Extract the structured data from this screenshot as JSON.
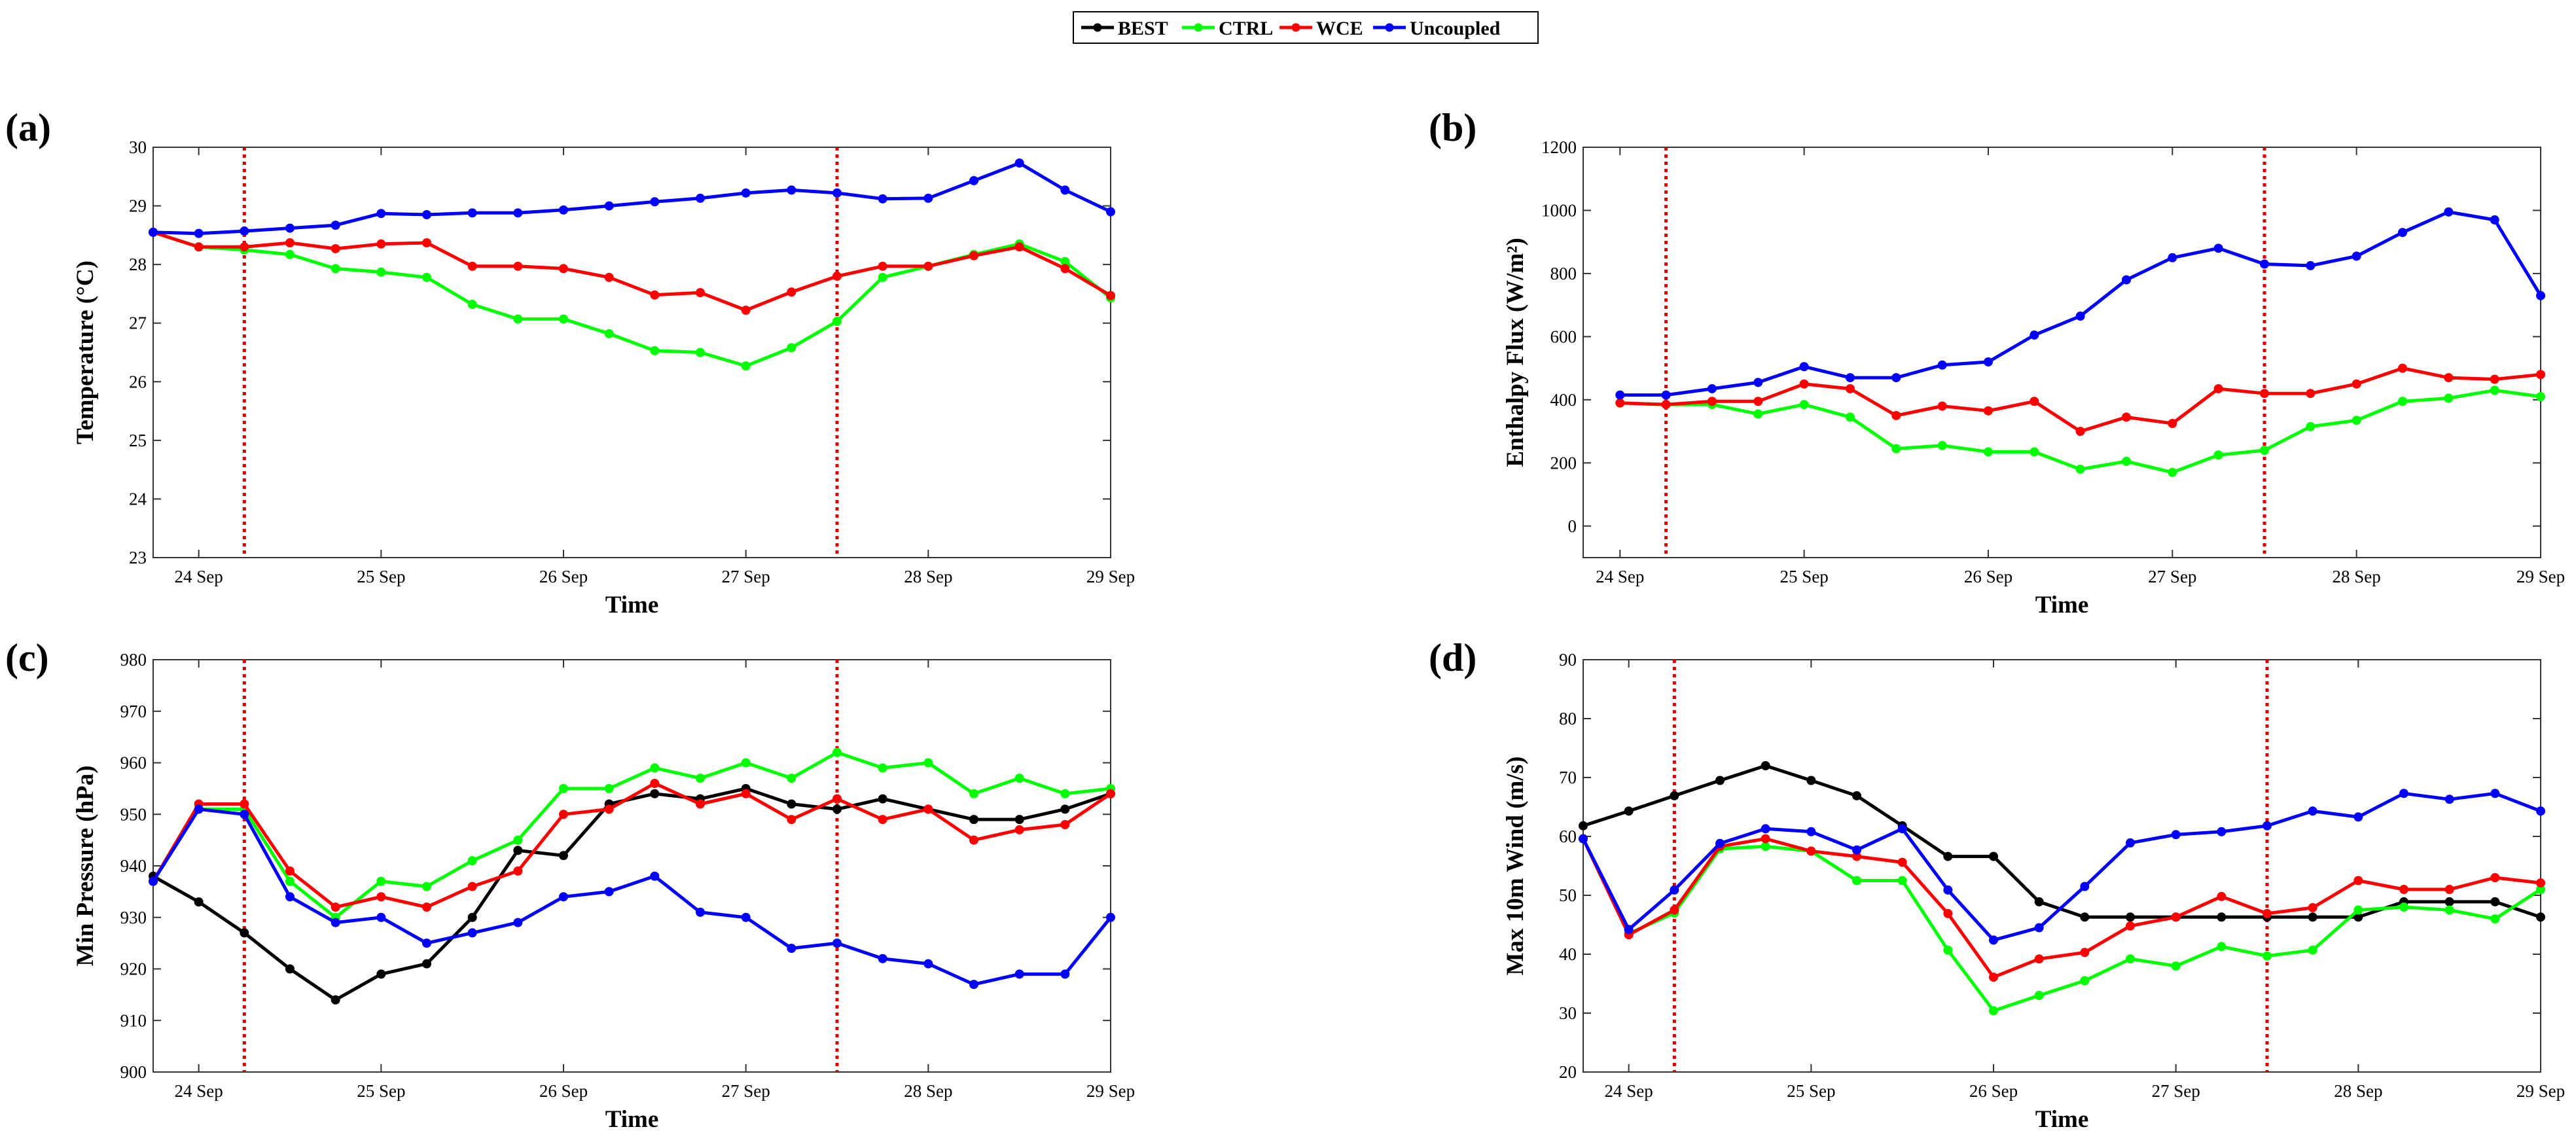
{
  "legend": {
    "entries": [
      "BEST",
      "CTRL",
      "WCE",
      "Uncoupled"
    ],
    "placement": "top-center"
  },
  "colors": {
    "BEST": "#000000",
    "CTRL": "#00ff00",
    "WCE": "#ff0000",
    "Uncoupled": "#0000ff",
    "vline": "#dd0000"
  },
  "chart_data": [
    {
      "panel_label": "(a)",
      "type": "line",
      "title": "",
      "xlabel": "Time",
      "ylabel": "Temperature (°C)",
      "xlim": [
        -0.25,
        5.0
      ],
      "ylim": [
        23,
        30
      ],
      "yticks": [
        "23",
        "24",
        "25",
        "26",
        "27",
        "28",
        "29",
        "30"
      ],
      "xticks": [
        "24 Sep",
        "25 Sep",
        "26 Sep",
        "27 Sep",
        "28 Sep",
        "29 Sep"
      ],
      "vlines": [
        0.25,
        3.5
      ],
      "x": [
        -0.25,
        0,
        0.25,
        0.5,
        0.75,
        1,
        1.25,
        1.5,
        1.75,
        2,
        2.25,
        2.5,
        2.75,
        3,
        3.25,
        3.5,
        3.75,
        4,
        4.25,
        4.5,
        4.75,
        5
      ],
      "series": [
        {
          "name": "CTRL",
          "values": [
            28.55,
            28.3,
            28.25,
            28.17,
            27.93,
            27.87,
            27.78,
            27.32,
            27.07,
            27.07,
            26.82,
            26.53,
            26.5,
            26.27,
            26.58,
            27.03,
            27.78,
            27.97,
            28.17,
            28.35,
            28.05,
            27.43
          ]
        },
        {
          "name": "WCE",
          "values": [
            28.55,
            28.3,
            28.3,
            28.37,
            28.27,
            28.35,
            28.37,
            27.97,
            27.97,
            27.93,
            27.78,
            27.48,
            27.52,
            27.22,
            27.53,
            27.8,
            27.97,
            27.97,
            28.15,
            28.3,
            27.93,
            27.47
          ]
        },
        {
          "name": "Uncoupled",
          "values": [
            28.55,
            28.53,
            28.57,
            28.62,
            28.67,
            28.87,
            28.85,
            28.88,
            28.88,
            28.93,
            29.0,
            29.07,
            29.13,
            29.22,
            29.27,
            29.22,
            29.12,
            29.13,
            29.43,
            29.73,
            29.27,
            28.9
          ]
        }
      ]
    },
    {
      "panel_label": "(b)",
      "type": "line",
      "title": "",
      "xlabel": "Time",
      "ylabel": "Enthalpy Flux (W/m²)",
      "xlim": [
        -0.2,
        5.0
      ],
      "ylim": [
        -100,
        1200
      ],
      "yticks": [
        "0",
        "200",
        "400",
        "600",
        "800",
        "1000",
        "1200"
      ],
      "xticks": [
        "24 Sep",
        "25 Sep",
        "26 Sep",
        "27 Sep",
        "28 Sep",
        "29 Sep"
      ],
      "vlines": [
        0.25,
        3.5
      ],
      "x": [
        0,
        0.25,
        0.5,
        0.75,
        1,
        1.25,
        1.5,
        1.75,
        2,
        2.25,
        2.5,
        2.75,
        3,
        3.25,
        3.5,
        3.75,
        4,
        4.25,
        4.5,
        4.75,
        5
      ],
      "series": [
        {
          "name": "CTRL",
          "values": [
            390,
            385,
            385,
            355,
            385,
            345,
            245,
            255,
            235,
            235,
            180,
            205,
            170,
            225,
            240,
            315,
            335,
            395,
            405,
            430,
            410
          ]
        },
        {
          "name": "WCE",
          "values": [
            390,
            385,
            395,
            395,
            450,
            435,
            350,
            380,
            365,
            395,
            300,
            345,
            325,
            435,
            420,
            420,
            450,
            500,
            470,
            465,
            480
          ]
        },
        {
          "name": "Uncoupled",
          "values": [
            415,
            415,
            435,
            455,
            505,
            470,
            470,
            510,
            520,
            605,
            665,
            780,
            850,
            880,
            830,
            825,
            855,
            930,
            995,
            970,
            730
          ]
        }
      ]
    },
    {
      "panel_label": "(c)",
      "type": "line",
      "title": "",
      "xlabel": "Time",
      "ylabel": "Min Pressure (hPa)",
      "xlim": [
        -0.25,
        5.0
      ],
      "ylim": [
        900,
        980
      ],
      "yticks": [
        "900",
        "910",
        "920",
        "930",
        "940",
        "950",
        "960",
        "970",
        "980"
      ],
      "xticks": [
        "24 Sep",
        "25 Sep",
        "26 Sep",
        "27 Sep",
        "28 Sep",
        "29 Sep"
      ],
      "vlines": [
        0.25,
        3.5
      ],
      "x": [
        -0.25,
        0,
        0.25,
        0.5,
        0.75,
        1,
        1.25,
        1.5,
        1.75,
        2,
        2.25,
        2.5,
        2.75,
        3,
        3.25,
        3.5,
        3.75,
        4,
        4.25,
        4.5,
        4.75,
        5
      ],
      "series": [
        {
          "name": "BEST",
          "values": [
            938,
            933,
            927,
            920,
            914,
            919,
            921,
            930,
            943,
            942,
            952,
            954,
            953,
            955,
            952,
            951,
            953,
            951,
            949,
            949,
            951,
            954
          ]
        },
        {
          "name": "CTRL",
          "values": [
            937,
            951,
            951,
            937,
            930,
            937,
            936,
            941,
            945,
            955,
            955,
            959,
            957,
            960,
            957,
            962,
            959,
            960,
            954,
            957,
            954,
            955
          ]
        },
        {
          "name": "WCE",
          "values": [
            937,
            952,
            952,
            939,
            932,
            934,
            932,
            936,
            939,
            950,
            951,
            956,
            952,
            954,
            949,
            953,
            949,
            951,
            945,
            947,
            948,
            954
          ]
        },
        {
          "name": "Uncoupled",
          "values": [
            937,
            951,
            950,
            934,
            929,
            930,
            925,
            927,
            929,
            934,
            935,
            938,
            931,
            930,
            924,
            925,
            922,
            921,
            917,
            919,
            919,
            930
          ]
        }
      ]
    },
    {
      "panel_label": "(d)",
      "type": "line",
      "title": "",
      "xlabel": "Time",
      "ylabel": "Max 10m Wind (m/s)",
      "xlim": [
        -0.25,
        5.0
      ],
      "ylim": [
        20,
        90
      ],
      "yticks": [
        "20",
        "30",
        "40",
        "50",
        "60",
        "70",
        "80",
        "90"
      ],
      "xticks": [
        "24 Sep",
        "25 Sep",
        "26 Sep",
        "27 Sep",
        "28 Sep",
        "29 Sep"
      ],
      "vlines": [
        0.25,
        3.5
      ],
      "x": [
        -0.25,
        0,
        0.25,
        0.5,
        0.75,
        1,
        1.25,
        1.5,
        1.75,
        2,
        2.25,
        2.5,
        2.75,
        3,
        3.25,
        3.5,
        3.75,
        4,
        4.25,
        4.5,
        4.75,
        5
      ],
      "series": [
        {
          "name": "BEST",
          "values": [
            61.8,
            64.3,
            66.9,
            69.5,
            72.0,
            69.5,
            66.9,
            61.8,
            56.6,
            56.6,
            48.9,
            46.3,
            46.3,
            46.3,
            46.3,
            46.3,
            46.3,
            46.3,
            48.9,
            48.9,
            48.9,
            46.3
          ]
        },
        {
          "name": "CTRL",
          "values": [
            59.6,
            43.5,
            47.0,
            57.9,
            58.3,
            57.5,
            52.5,
            52.5,
            40.7,
            30.4,
            33.0,
            35.5,
            39.2,
            38.0,
            41.3,
            39.7,
            40.7,
            47.5,
            48.0,
            47.5,
            46.0,
            51.0
          ]
        },
        {
          "name": "WCE",
          "values": [
            59.6,
            43.3,
            47.5,
            58.3,
            59.6,
            57.5,
            56.6,
            55.6,
            46.9,
            36.1,
            39.2,
            40.3,
            44.8,
            46.3,
            49.8,
            46.9,
            47.9,
            52.5,
            51.0,
            51.0,
            53.0,
            52.1
          ]
        },
        {
          "name": "Uncoupled",
          "values": [
            59.6,
            44.2,
            50.9,
            58.8,
            61.3,
            60.8,
            57.7,
            61.3,
            50.9,
            42.4,
            44.5,
            51.5,
            58.9,
            60.3,
            60.8,
            61.8,
            64.3,
            63.3,
            67.3,
            66.3,
            67.3,
            64.3
          ]
        }
      ]
    }
  ]
}
